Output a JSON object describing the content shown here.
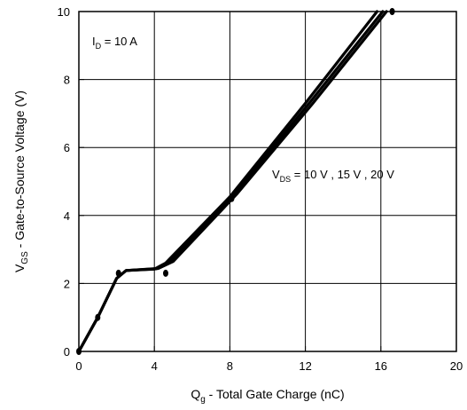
{
  "chart_data": {
    "type": "line",
    "xlabel_main": "Q",
    "xlabel_sub": "g",
    "xlabel_rest": " - Total Gate Charge (nC)",
    "ylabel_main": "V",
    "ylabel_sub": "GS",
    "ylabel_rest": " - Gate-to-Source Voltage (V)",
    "xlim": [
      0,
      20
    ],
    "ylim": [
      0,
      10
    ],
    "xticks": [
      0,
      4,
      8,
      12,
      16,
      20
    ],
    "yticks": [
      0,
      2,
      4,
      6,
      8,
      10
    ],
    "grid": true,
    "annotations": [
      {
        "main": "I",
        "sub": "D",
        "rest": " = 10 A"
      },
      {
        "main": "V",
        "sub": "DS",
        "rest": " = 10 V , 15 V , 20 V"
      }
    ],
    "series": [
      {
        "values": [
          [
            0,
            0
          ],
          [
            1,
            1
          ],
          [
            2,
            2.15
          ],
          [
            2.5,
            2.38
          ],
          [
            4,
            2.42
          ],
          [
            4.6,
            2.6
          ],
          [
            8,
            4.55
          ],
          [
            12,
            7.3
          ],
          [
            15.8,
            10
          ]
        ]
      },
      {
        "values": [
          [
            0,
            0
          ],
          [
            1,
            1
          ],
          [
            2,
            2.15
          ],
          [
            2.5,
            2.38
          ],
          [
            4.1,
            2.43
          ],
          [
            4.8,
            2.62
          ],
          [
            8.2,
            4.6
          ],
          [
            12.2,
            7.3
          ],
          [
            16.1,
            10
          ]
        ]
      },
      {
        "values": [
          [
            0,
            0
          ],
          [
            1,
            1
          ],
          [
            2,
            2.15
          ],
          [
            2.5,
            2.38
          ],
          [
            4.2,
            2.44
          ],
          [
            5.0,
            2.65
          ],
          [
            8.4,
            4.65
          ],
          [
            12.4,
            7.3
          ],
          [
            16.3,
            10
          ]
        ]
      }
    ],
    "markers": [
      [
        0,
        0
      ],
      [
        1,
        1
      ],
      [
        2.1,
        2.3
      ],
      [
        4.6,
        2.3
      ],
      [
        8.1,
        4.5
      ],
      [
        16.6,
        10
      ]
    ]
  }
}
